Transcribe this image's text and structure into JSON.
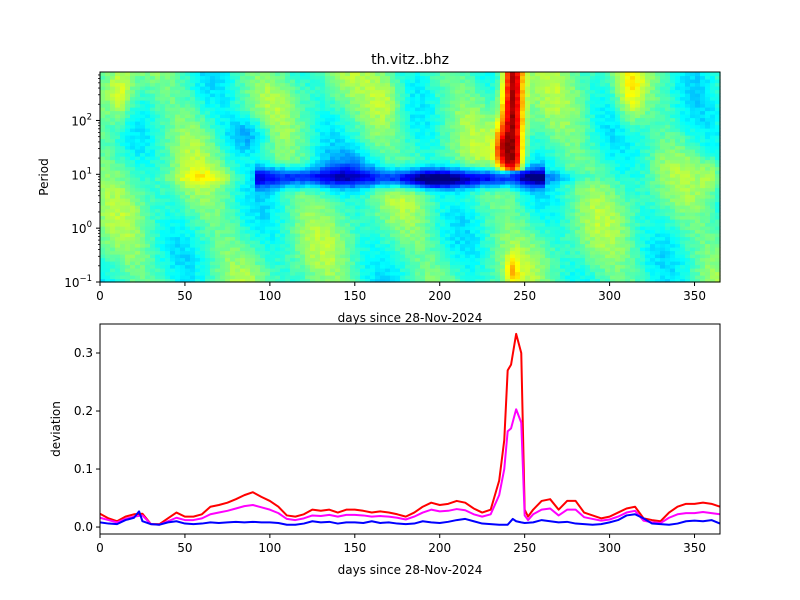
{
  "chart_data": [
    {
      "type": "heatmap",
      "title": "th.vitz..bhz",
      "xlabel": "days since 28-Nov-2024",
      "ylabel": "Period",
      "xlim": [
        0,
        365
      ],
      "ylim_log10": [
        -1,
        2.9
      ],
      "x_ticks": [
        0,
        50,
        100,
        150,
        200,
        250,
        300,
        350
      ],
      "x_tick_labels": [
        "0",
        "50",
        "100",
        "150",
        "200",
        "250",
        "300",
        "350"
      ],
      "y_ticks_log10": [
        -1,
        0,
        1,
        2
      ],
      "y_tick_bases": [
        "10",
        "10",
        "10",
        "10"
      ],
      "y_tick_exponents": [
        "−1",
        "0",
        "1",
        "2"
      ],
      "colormap": "jet",
      "features": [
        {
          "x": [
            238,
            248
          ],
          "period_log10": [
            1.2,
            2.9
          ],
          "level": "high",
          "color": "#800000"
        },
        {
          "x": [
            90,
            260
          ],
          "period_log10": [
            0.6,
            1.3
          ],
          "level": "low",
          "color": "#0044ff"
        }
      ]
    },
    {
      "type": "line",
      "xlabel": "days since 28-Nov-2024",
      "ylabel": "deviation",
      "xlim": [
        0,
        365
      ],
      "ylim": [
        -0.012,
        0.35
      ],
      "x_ticks": [
        0,
        50,
        100,
        150,
        200,
        250,
        300,
        350
      ],
      "x_tick_labels": [
        "0",
        "50",
        "100",
        "150",
        "200",
        "250",
        "300",
        "350"
      ],
      "y_ticks": [
        0.0,
        0.1,
        0.2,
        0.3
      ],
      "y_tick_labels": [
        "0.0",
        "0.1",
        "0.2",
        "0.3"
      ],
      "series": [
        {
          "name": "red",
          "color": "#ff0000",
          "x": [
            0,
            5,
            10,
            15,
            20,
            25,
            30,
            35,
            40,
            45,
            50,
            55,
            60,
            65,
            70,
            75,
            80,
            85,
            90,
            95,
            100,
            105,
            110,
            115,
            120,
            125,
            130,
            135,
            140,
            145,
            150,
            155,
            160,
            165,
            170,
            175,
            180,
            185,
            190,
            195,
            200,
            205,
            210,
            215,
            220,
            225,
            230,
            235,
            238,
            240,
            242,
            245,
            248,
            250,
            252,
            255,
            260,
            265,
            270,
            275,
            280,
            285,
            290,
            295,
            300,
            305,
            310,
            315,
            320,
            325,
            330,
            335,
            340,
            345,
            350,
            355,
            360,
            365
          ],
          "values": [
            0.023,
            0.015,
            0.01,
            0.018,
            0.022,
            0.023,
            0.005,
            0.005,
            0.015,
            0.025,
            0.018,
            0.018,
            0.022,
            0.035,
            0.038,
            0.042,
            0.048,
            0.055,
            0.06,
            0.052,
            0.045,
            0.035,
            0.02,
            0.018,
            0.022,
            0.03,
            0.028,
            0.03,
            0.025,
            0.03,
            0.03,
            0.028,
            0.025,
            0.027,
            0.025,
            0.022,
            0.018,
            0.025,
            0.035,
            0.042,
            0.038,
            0.04,
            0.045,
            0.042,
            0.032,
            0.025,
            0.03,
            0.08,
            0.15,
            0.27,
            0.28,
            0.333,
            0.3,
            0.03,
            0.018,
            0.03,
            0.045,
            0.048,
            0.03,
            0.045,
            0.045,
            0.025,
            0.02,
            0.015,
            0.018,
            0.025,
            0.032,
            0.035,
            0.015,
            0.012,
            0.01,
            0.025,
            0.035,
            0.04,
            0.04,
            0.042,
            0.04,
            0.035
          ]
        },
        {
          "name": "magenta",
          "color": "#ff00ff",
          "x": [
            0,
            5,
            10,
            15,
            20,
            25,
            30,
            35,
            40,
            45,
            50,
            55,
            60,
            65,
            70,
            75,
            80,
            85,
            90,
            95,
            100,
            105,
            110,
            115,
            120,
            125,
            130,
            135,
            140,
            145,
            150,
            155,
            160,
            165,
            170,
            175,
            180,
            185,
            190,
            195,
            200,
            205,
            210,
            215,
            220,
            225,
            230,
            235,
            238,
            240,
            242,
            245,
            248,
            250,
            252,
            255,
            260,
            265,
            270,
            275,
            280,
            285,
            290,
            295,
            300,
            305,
            310,
            315,
            320,
            325,
            330,
            335,
            340,
            345,
            350,
            355,
            360,
            365
          ],
          "values": [
            0.016,
            0.012,
            0.008,
            0.014,
            0.018,
            0.02,
            0.005,
            0.004,
            0.01,
            0.016,
            0.012,
            0.012,
            0.015,
            0.022,
            0.025,
            0.028,
            0.032,
            0.036,
            0.038,
            0.034,
            0.03,
            0.024,
            0.014,
            0.012,
            0.015,
            0.02,
            0.019,
            0.021,
            0.018,
            0.021,
            0.021,
            0.02,
            0.018,
            0.019,
            0.018,
            0.016,
            0.013,
            0.018,
            0.025,
            0.03,
            0.027,
            0.028,
            0.031,
            0.029,
            0.022,
            0.018,
            0.022,
            0.055,
            0.1,
            0.165,
            0.17,
            0.203,
            0.18,
            0.02,
            0.012,
            0.022,
            0.03,
            0.032,
            0.02,
            0.03,
            0.03,
            0.017,
            0.014,
            0.011,
            0.013,
            0.018,
            0.025,
            0.028,
            0.011,
            0.008,
            0.007,
            0.016,
            0.022,
            0.024,
            0.024,
            0.026,
            0.024,
            0.022
          ]
        },
        {
          "name": "blue",
          "color": "#0000ff",
          "x": [
            0,
            5,
            10,
            15,
            20,
            23,
            25,
            30,
            35,
            40,
            45,
            50,
            55,
            60,
            65,
            70,
            75,
            80,
            85,
            90,
            95,
            100,
            105,
            110,
            115,
            120,
            125,
            130,
            135,
            140,
            145,
            150,
            155,
            160,
            165,
            170,
            175,
            180,
            185,
            190,
            195,
            200,
            205,
            210,
            215,
            220,
            225,
            230,
            235,
            240,
            243,
            245,
            248,
            250,
            255,
            260,
            265,
            270,
            275,
            280,
            285,
            290,
            295,
            300,
            305,
            310,
            315,
            320,
            325,
            330,
            335,
            340,
            345,
            350,
            355,
            360,
            365
          ],
          "values": [
            0.008,
            0.006,
            0.005,
            0.012,
            0.016,
            0.027,
            0.01,
            0.005,
            0.004,
            0.008,
            0.01,
            0.006,
            0.005,
            0.006,
            0.008,
            0.007,
            0.008,
            0.009,
            0.008,
            0.009,
            0.008,
            0.008,
            0.007,
            0.004,
            0.004,
            0.006,
            0.01,
            0.008,
            0.009,
            0.006,
            0.008,
            0.008,
            0.007,
            0.01,
            0.007,
            0.008,
            0.006,
            0.005,
            0.006,
            0.01,
            0.008,
            0.007,
            0.009,
            0.012,
            0.014,
            0.01,
            0.006,
            0.005,
            0.004,
            0.004,
            0.014,
            0.01,
            0.008,
            0.007,
            0.008,
            0.012,
            0.01,
            0.008,
            0.009,
            0.006,
            0.005,
            0.004,
            0.005,
            0.008,
            0.012,
            0.02,
            0.022,
            0.015,
            0.006,
            0.005,
            0.004,
            0.006,
            0.01,
            0.011,
            0.01,
            0.012,
            0.006
          ]
        }
      ]
    }
  ]
}
